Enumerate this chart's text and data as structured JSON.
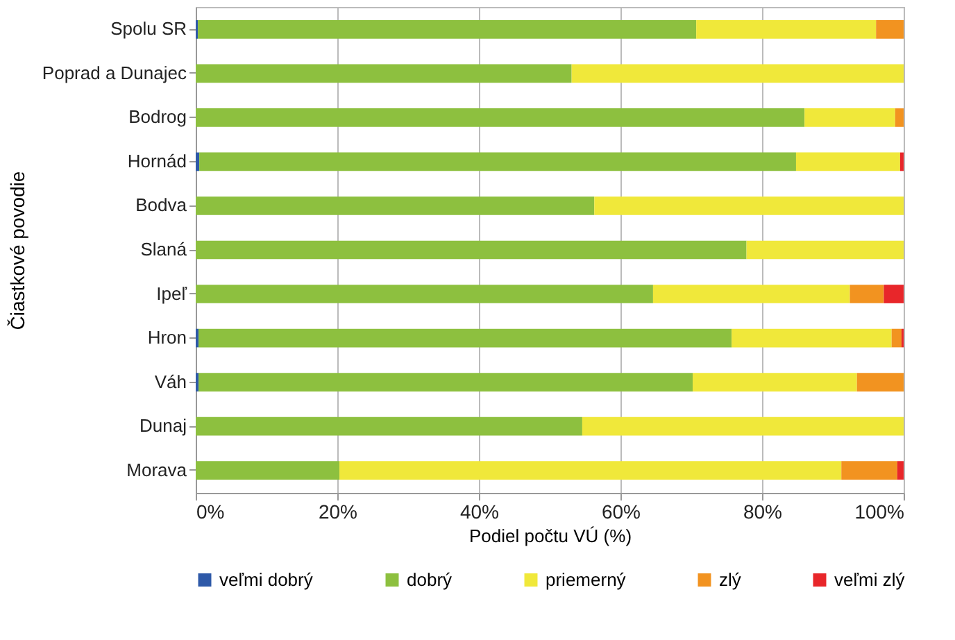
{
  "chart_data": {
    "type": "bar",
    "orientation": "horizontal",
    "stacked": true,
    "xlabel": "Podiel počtu VÚ (%)",
    "ylabel": "Čiastkové povodie",
    "categories": [
      "Spolu SR",
      "Poprad a Dunajec",
      "Bodrog",
      "Hornád",
      "Bodva",
      "Slaná",
      "Ipeľ",
      "Hron",
      "Váh",
      "Dunaj",
      "Morava"
    ],
    "series": [
      {
        "name": "veľmi dobrý",
        "color": "#2e59a8",
        "values": [
          0.3,
          null,
          null,
          0.5,
          null,
          null,
          null,
          0.4,
          0.4,
          null,
          null
        ]
      },
      {
        "name": "dobrý",
        "color": "#8dc03f",
        "values": [
          70.4,
          53.1,
          86.0,
          84.3,
          56.3,
          77.8,
          64.6,
          75.3,
          69.8,
          54.6,
          20.3
        ]
      },
      {
        "name": "priemerný",
        "color": "#f0e83a",
        "values": [
          25.4,
          46.9,
          12.8,
          14.7,
          43.7,
          22.2,
          27.8,
          22.6,
          23.2,
          45.4,
          70.9
        ]
      },
      {
        "name": "zlý",
        "color": "#f29320",
        "values": [
          3.9,
          null,
          1.2,
          null,
          null,
          null,
          4.8,
          1.4,
          6.6,
          null,
          7.9
        ]
      },
      {
        "name": "veľmi zlý",
        "color": "#e8262a",
        "values": [
          null,
          null,
          null,
          0.5,
          null,
          null,
          2.8,
          0.3,
          null,
          null,
          0.9
        ]
      }
    ],
    "xlim": [
      0,
      100
    ],
    "xticks": [
      {
        "value": 0,
        "label": "0%"
      },
      {
        "value": 20,
        "label": "20%"
      },
      {
        "value": 40,
        "label": "40%"
      },
      {
        "value": 60,
        "label": "60%"
      },
      {
        "value": 80,
        "label": "80%"
      },
      {
        "value": 100,
        "label": "100%"
      }
    ],
    "grid": "x",
    "legend": "bottom"
  }
}
